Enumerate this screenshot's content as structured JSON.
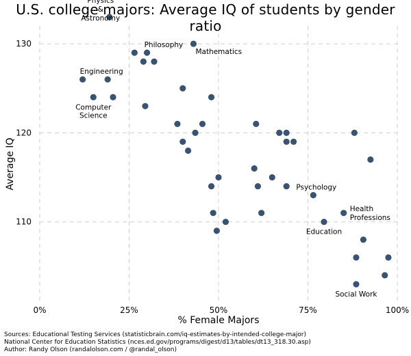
{
  "chart_data": {
    "type": "scatter",
    "title": "U.S. college majors: Average IQ of students by gender ratio",
    "xlabel": "% Female Majors",
    "ylabel": "Average IQ",
    "xlim": [
      0,
      100
    ],
    "ylim": [
      101,
      132
    ],
    "x_ticks": [
      0,
      25,
      50,
      75,
      100
    ],
    "x_tick_labels": [
      "0%",
      "25%",
      "50%",
      "75%",
      "100%"
    ],
    "y_ticks": [
      110,
      120,
      130
    ],
    "y_tick_labels": [
      "110",
      "120",
      "130"
    ],
    "grid": true,
    "marker_color": "#3b5372",
    "series": [
      {
        "points": [
          {
            "x": 19.5,
            "y": 133
          },
          {
            "x": 26.5,
            "y": 129
          },
          {
            "x": 30.0,
            "y": 129
          },
          {
            "x": 29.0,
            "y": 128
          },
          {
            "x": 32.0,
            "y": 128
          },
          {
            "x": 43.0,
            "y": 130
          },
          {
            "x": 12.0,
            "y": 126
          },
          {
            "x": 19.0,
            "y": 126
          },
          {
            "x": 15.0,
            "y": 124
          },
          {
            "x": 20.5,
            "y": 124
          },
          {
            "x": 29.5,
            "y": 123
          },
          {
            "x": 40.0,
            "y": 125
          },
          {
            "x": 48.0,
            "y": 124
          },
          {
            "x": 38.5,
            "y": 121
          },
          {
            "x": 45.5,
            "y": 121
          },
          {
            "x": 43.5,
            "y": 120
          },
          {
            "x": 40.0,
            "y": 119
          },
          {
            "x": 41.5,
            "y": 118
          },
          {
            "x": 60.5,
            "y": 121
          },
          {
            "x": 67.0,
            "y": 120
          },
          {
            "x": 69.0,
            "y": 120
          },
          {
            "x": 69.0,
            "y": 119
          },
          {
            "x": 71.0,
            "y": 119
          },
          {
            "x": 88.0,
            "y": 120
          },
          {
            "x": 92.5,
            "y": 117
          },
          {
            "x": 60.0,
            "y": 116
          },
          {
            "x": 50.0,
            "y": 115
          },
          {
            "x": 65.0,
            "y": 115
          },
          {
            "x": 48.0,
            "y": 114
          },
          {
            "x": 61.0,
            "y": 114
          },
          {
            "x": 69.0,
            "y": 114
          },
          {
            "x": 76.5,
            "y": 113
          },
          {
            "x": 48.5,
            "y": 111
          },
          {
            "x": 62.0,
            "y": 111
          },
          {
            "x": 85.0,
            "y": 111
          },
          {
            "x": 52.0,
            "y": 110
          },
          {
            "x": 79.5,
            "y": 110
          },
          {
            "x": 49.5,
            "y": 109
          },
          {
            "x": 90.5,
            "y": 108
          },
          {
            "x": 88.5,
            "y": 106
          },
          {
            "x": 97.5,
            "y": 106
          },
          {
            "x": 96.5,
            "y": 104
          },
          {
            "x": 88.5,
            "y": 103
          }
        ]
      }
    ],
    "annotations": [
      {
        "lines": [
          "Physics",
          "&",
          "Astronomy"
        ],
        "x": 19.5,
        "y": 133,
        "pos": "left"
      },
      {
        "lines": [
          "Philosophy"
        ],
        "x": 30.0,
        "y": 129,
        "pos": "above-right"
      },
      {
        "lines": [
          "Mathematics"
        ],
        "x": 43.0,
        "y": 130,
        "pos": "below-right"
      },
      {
        "lines": [
          "Engineering"
        ],
        "x": 12.0,
        "y": 126,
        "pos": "above-right"
      },
      {
        "lines": [
          "Computer",
          "Science"
        ],
        "x": 15.0,
        "y": 124,
        "pos": "below"
      },
      {
        "lines": [
          "Psychology"
        ],
        "x": 76.5,
        "y": 113,
        "pos": "above-left"
      },
      {
        "lines": [
          "Health",
          "Professions"
        ],
        "x": 85.0,
        "y": 111,
        "pos": "right"
      },
      {
        "lines": [
          "Education"
        ],
        "x": 79.5,
        "y": 110,
        "pos": "below"
      },
      {
        "lines": [
          "Social Work"
        ],
        "x": 88.5,
        "y": 103,
        "pos": "below"
      }
    ]
  },
  "footer": {
    "line1": "Sources: Educational Testing Services (statisticbrain.com/iq-estimates-by-intended-college-major)",
    "line2": "National Center for Education Statistics (nces.ed.gov/programs/digest/d13/tables/dt13_318.30.asp)",
    "line3": "Author: Randy Olson (randalolson.com / @randal_olson)"
  }
}
